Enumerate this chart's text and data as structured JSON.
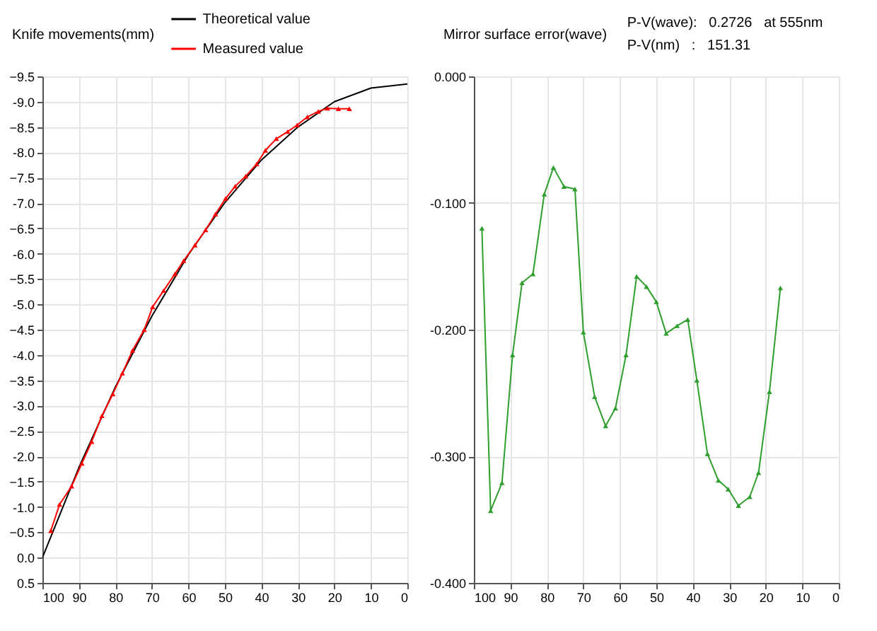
{
  "chart_data": [
    {
      "type": "line",
      "ylabel": "Knife movements(mm)",
      "legend": "top",
      "grid": true,
      "marker": "triangle",
      "xlim": [
        100,
        0
      ],
      "xticks": [
        100,
        90,
        80,
        70,
        60,
        50,
        40,
        30,
        20,
        10,
        0
      ],
      "ylim": [
        0.5,
        -9.5
      ],
      "yticks": [
        0.5,
        {
          "value": 0,
          "label": "0.0"
        },
        -0.5,
        {
          "value": -1,
          "label": "-1.0"
        },
        -1.5,
        {
          "value": -2,
          "label": "-2.0"
        },
        -2.5,
        {
          "value": -3,
          "label": "-3.0"
        },
        -3.5,
        {
          "value": -4,
          "label": "-4.0"
        },
        -4.5,
        {
          "value": -5,
          "label": "-5.0"
        },
        -5.5,
        {
          "value": -6,
          "label": "-6.0"
        },
        -6.5,
        {
          "value": -7,
          "label": "-7.0"
        },
        -7.5,
        {
          "value": -8,
          "label": "-8.0"
        },
        -8.5,
        {
          "value": -9,
          "label": "-9.0"
        },
        -9.5
      ],
      "series": [
        {
          "name": "Theoretical value",
          "color": "#000000",
          "marker": "none",
          "x": [
            100,
            90,
            80,
            70,
            60,
            50,
            40,
            30,
            20,
            10,
            0
          ],
          "values": [
            0,
            -1.78,
            -3.37,
            -4.77,
            -5.98,
            -7.01,
            -7.85,
            -8.5,
            -9.0,
            -9.27,
            -9.35
          ]
        },
        {
          "name": "Measured value",
          "color": "#ff0000",
          "x": [
            97.7,
            95.3,
            92.0,
            89.2,
            86.5,
            83.7,
            80.7,
            78.1,
            75.3,
            72.1,
            69.8,
            66.8,
            63.7,
            61.3,
            58.2,
            55.3,
            52.6,
            49.8,
            47.2,
            44.3,
            41.3,
            38.9,
            35.9,
            32.8,
            30.2,
            27.4,
            24.4,
            21.9,
            18.9,
            15.9
          ],
          "values": [
            -0.53,
            -1.05,
            -1.41,
            -1.86,
            -2.29,
            -2.8,
            -3.23,
            -3.64,
            -4.09,
            -4.5,
            -4.95,
            -5.27,
            -5.6,
            -5.86,
            -6.17,
            -6.47,
            -6.78,
            -7.09,
            -7.33,
            -7.53,
            -7.77,
            -8.04,
            -8.27,
            -8.41,
            -8.54,
            -8.7,
            -8.81,
            -8.87,
            -8.86,
            -8.86
          ]
        }
      ]
    },
    {
      "type": "line",
      "ylabel": "Mirror surface error(wave)",
      "grid": true,
      "marker": "triangle",
      "annotations": [
        "P-V(wave):   0.2726   at 555nm",
        "P-V(nm)   :   151.31"
      ],
      "xlim": [
        100,
        0
      ],
      "xticks": [
        100,
        90,
        80,
        70,
        60,
        50,
        40,
        30,
        20,
        10,
        0
      ],
      "ylim": [
        -0.4,
        0
      ],
      "yticks": [
        {
          "value": 0,
          "label": "0.000"
        },
        {
          "value": -0.1,
          "label": "-0.100"
        },
        {
          "value": -0.2,
          "label": "-0.200"
        },
        {
          "value": -0.3,
          "label": "-0.300"
        },
        {
          "value": -0.4,
          "label": "-0.400"
        }
      ],
      "series": [
        {
          "color": "#2e9e2e",
          "x": [
            97.8,
            95.4,
            92.3,
            89.4,
            86.8,
            83.8,
            80.7,
            78.2,
            75.3,
            72.3,
            70.0,
            66.9,
            63.9,
            61.2,
            58.3,
            55.4,
            52.7,
            50.0,
            47.3,
            44.3,
            41.4,
            38.9,
            36.0,
            33.0,
            30.3,
            27.5,
            24.4,
            22.0,
            19.0,
            16.0
          ],
          "values": [
            -0.12,
            -0.343,
            -0.321,
            -0.22,
            -0.163,
            -0.156,
            -0.093,
            -0.072,
            -0.087,
            -0.089,
            -0.202,
            -0.253,
            -0.276,
            -0.262,
            -0.22,
            -0.158,
            -0.166,
            -0.178,
            -0.203,
            -0.197,
            -0.192,
            -0.24,
            -0.298,
            -0.319,
            -0.326,
            -0.339,
            -0.332,
            -0.313,
            -0.249,
            -0.167
          ]
        }
      ]
    }
  ]
}
